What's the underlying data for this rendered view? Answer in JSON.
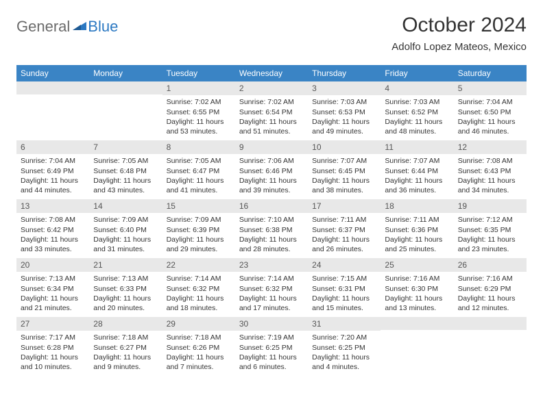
{
  "brand": {
    "part1": "General",
    "part2": "Blue"
  },
  "title": "October 2024",
  "location": "Adolfo Lopez Mateos, Mexico",
  "colors": {
    "header_bg": "#3a84c5",
    "header_text": "#ffffff",
    "band_bg": "#e8e8e8",
    "text": "#333333",
    "logo_gray": "#6b6b6b",
    "logo_blue": "#2b78c2"
  },
  "weekdays": [
    "Sunday",
    "Monday",
    "Tuesday",
    "Wednesday",
    "Thursday",
    "Friday",
    "Saturday"
  ],
  "weeks": [
    [
      null,
      null,
      {
        "n": "1",
        "sr": "Sunrise: 7:02 AM",
        "ss": "Sunset: 6:55 PM",
        "dl": "Daylight: 11 hours and 53 minutes."
      },
      {
        "n": "2",
        "sr": "Sunrise: 7:02 AM",
        "ss": "Sunset: 6:54 PM",
        "dl": "Daylight: 11 hours and 51 minutes."
      },
      {
        "n": "3",
        "sr": "Sunrise: 7:03 AM",
        "ss": "Sunset: 6:53 PM",
        "dl": "Daylight: 11 hours and 49 minutes."
      },
      {
        "n": "4",
        "sr": "Sunrise: 7:03 AM",
        "ss": "Sunset: 6:52 PM",
        "dl": "Daylight: 11 hours and 48 minutes."
      },
      {
        "n": "5",
        "sr": "Sunrise: 7:04 AM",
        "ss": "Sunset: 6:50 PM",
        "dl": "Daylight: 11 hours and 46 minutes."
      }
    ],
    [
      {
        "n": "6",
        "sr": "Sunrise: 7:04 AM",
        "ss": "Sunset: 6:49 PM",
        "dl": "Daylight: 11 hours and 44 minutes."
      },
      {
        "n": "7",
        "sr": "Sunrise: 7:05 AM",
        "ss": "Sunset: 6:48 PM",
        "dl": "Daylight: 11 hours and 43 minutes."
      },
      {
        "n": "8",
        "sr": "Sunrise: 7:05 AM",
        "ss": "Sunset: 6:47 PM",
        "dl": "Daylight: 11 hours and 41 minutes."
      },
      {
        "n": "9",
        "sr": "Sunrise: 7:06 AM",
        "ss": "Sunset: 6:46 PM",
        "dl": "Daylight: 11 hours and 39 minutes."
      },
      {
        "n": "10",
        "sr": "Sunrise: 7:07 AM",
        "ss": "Sunset: 6:45 PM",
        "dl": "Daylight: 11 hours and 38 minutes."
      },
      {
        "n": "11",
        "sr": "Sunrise: 7:07 AM",
        "ss": "Sunset: 6:44 PM",
        "dl": "Daylight: 11 hours and 36 minutes."
      },
      {
        "n": "12",
        "sr": "Sunrise: 7:08 AM",
        "ss": "Sunset: 6:43 PM",
        "dl": "Daylight: 11 hours and 34 minutes."
      }
    ],
    [
      {
        "n": "13",
        "sr": "Sunrise: 7:08 AM",
        "ss": "Sunset: 6:42 PM",
        "dl": "Daylight: 11 hours and 33 minutes."
      },
      {
        "n": "14",
        "sr": "Sunrise: 7:09 AM",
        "ss": "Sunset: 6:40 PM",
        "dl": "Daylight: 11 hours and 31 minutes."
      },
      {
        "n": "15",
        "sr": "Sunrise: 7:09 AM",
        "ss": "Sunset: 6:39 PM",
        "dl": "Daylight: 11 hours and 29 minutes."
      },
      {
        "n": "16",
        "sr": "Sunrise: 7:10 AM",
        "ss": "Sunset: 6:38 PM",
        "dl": "Daylight: 11 hours and 28 minutes."
      },
      {
        "n": "17",
        "sr": "Sunrise: 7:11 AM",
        "ss": "Sunset: 6:37 PM",
        "dl": "Daylight: 11 hours and 26 minutes."
      },
      {
        "n": "18",
        "sr": "Sunrise: 7:11 AM",
        "ss": "Sunset: 6:36 PM",
        "dl": "Daylight: 11 hours and 25 minutes."
      },
      {
        "n": "19",
        "sr": "Sunrise: 7:12 AM",
        "ss": "Sunset: 6:35 PM",
        "dl": "Daylight: 11 hours and 23 minutes."
      }
    ],
    [
      {
        "n": "20",
        "sr": "Sunrise: 7:13 AM",
        "ss": "Sunset: 6:34 PM",
        "dl": "Daylight: 11 hours and 21 minutes."
      },
      {
        "n": "21",
        "sr": "Sunrise: 7:13 AM",
        "ss": "Sunset: 6:33 PM",
        "dl": "Daylight: 11 hours and 20 minutes."
      },
      {
        "n": "22",
        "sr": "Sunrise: 7:14 AM",
        "ss": "Sunset: 6:32 PM",
        "dl": "Daylight: 11 hours and 18 minutes."
      },
      {
        "n": "23",
        "sr": "Sunrise: 7:14 AM",
        "ss": "Sunset: 6:32 PM",
        "dl": "Daylight: 11 hours and 17 minutes."
      },
      {
        "n": "24",
        "sr": "Sunrise: 7:15 AM",
        "ss": "Sunset: 6:31 PM",
        "dl": "Daylight: 11 hours and 15 minutes."
      },
      {
        "n": "25",
        "sr": "Sunrise: 7:16 AM",
        "ss": "Sunset: 6:30 PM",
        "dl": "Daylight: 11 hours and 13 minutes."
      },
      {
        "n": "26",
        "sr": "Sunrise: 7:16 AM",
        "ss": "Sunset: 6:29 PM",
        "dl": "Daylight: 11 hours and 12 minutes."
      }
    ],
    [
      {
        "n": "27",
        "sr": "Sunrise: 7:17 AM",
        "ss": "Sunset: 6:28 PM",
        "dl": "Daylight: 11 hours and 10 minutes."
      },
      {
        "n": "28",
        "sr": "Sunrise: 7:18 AM",
        "ss": "Sunset: 6:27 PM",
        "dl": "Daylight: 11 hours and 9 minutes."
      },
      {
        "n": "29",
        "sr": "Sunrise: 7:18 AM",
        "ss": "Sunset: 6:26 PM",
        "dl": "Daylight: 11 hours and 7 minutes."
      },
      {
        "n": "30",
        "sr": "Sunrise: 7:19 AM",
        "ss": "Sunset: 6:25 PM",
        "dl": "Daylight: 11 hours and 6 minutes."
      },
      {
        "n": "31",
        "sr": "Sunrise: 7:20 AM",
        "ss": "Sunset: 6:25 PM",
        "dl": "Daylight: 11 hours and 4 minutes."
      },
      null,
      null
    ]
  ]
}
